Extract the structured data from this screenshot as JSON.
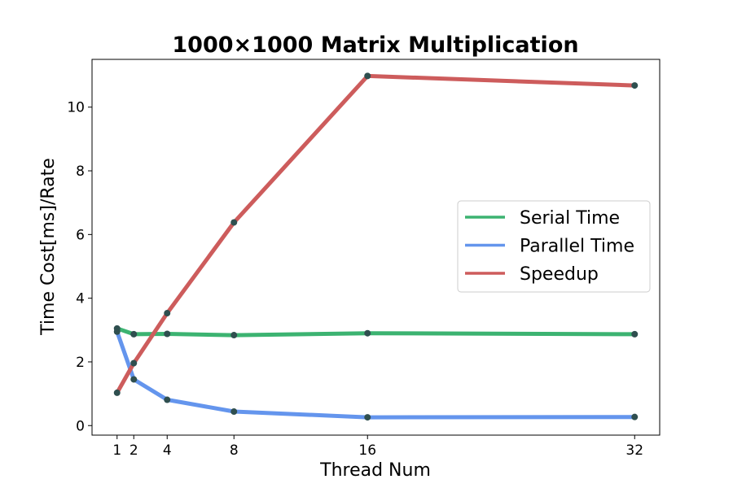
{
  "chart_data": {
    "type": "line",
    "title": "1000×1000 Matrix Multiplication",
    "xlabel": "Thread Num",
    "ylabel": "Time Cost[ms]/Rate",
    "x": [
      1,
      2,
      4,
      8,
      16,
      32
    ],
    "x_ticks": [
      "1",
      "2",
      "4",
      "8",
      "16",
      "32"
    ],
    "y_ticks": [
      "0",
      "2",
      "4",
      "6",
      "8",
      "10"
    ],
    "xlim": [
      -0.5,
      33.5
    ],
    "ylim": [
      -0.3,
      11.5
    ],
    "grid": false,
    "legend_position": "center-right",
    "series": [
      {
        "name": "Serial Time",
        "color": "#3cb371",
        "values": [
          3.05,
          2.87,
          2.88,
          2.84,
          2.9,
          2.87
        ]
      },
      {
        "name": "Parallel Time",
        "color": "#6495ed",
        "values": [
          2.95,
          1.45,
          0.81,
          0.44,
          0.26,
          0.27
        ]
      },
      {
        "name": "Speedup",
        "color": "#cd5c5c",
        "values": [
          1.03,
          1.96,
          3.53,
          6.38,
          10.98,
          10.68
        ]
      }
    ],
    "marker_color": "#2f4f4f"
  }
}
